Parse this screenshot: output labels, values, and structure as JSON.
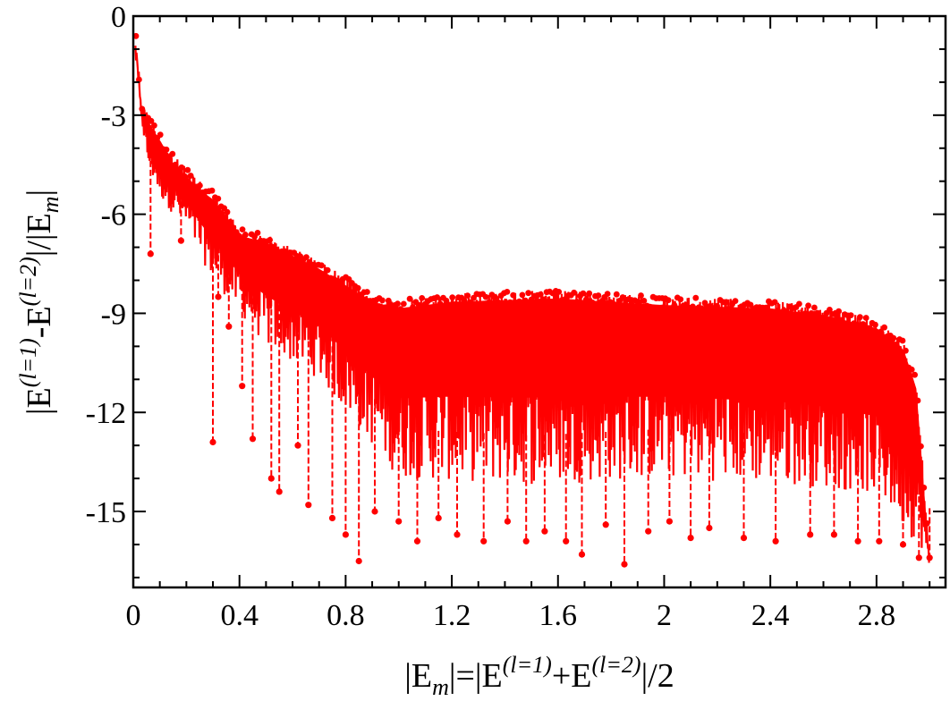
{
  "chart_data": {
    "type": "scatter",
    "title": "",
    "xlabel": {
      "prefix": "|E",
      "sub_m": "m",
      "mid": "|=|E",
      "sup1": "(l=1)",
      "plus": "+E",
      "sup2": "(l=2)",
      "suffix": "|/2"
    },
    "ylabel": {
      "prefix": "|E",
      "sup1": "(l=1)",
      "minus": "-E",
      "sup2": "(l=2)",
      "mid": "|/|E",
      "sub_m": "m",
      "suffix": "|"
    },
    "xlim": [
      0,
      3.06
    ],
    "ylim": [
      -17.3,
      0
    ],
    "xticks": [
      "0",
      "0.4",
      "0.8",
      "1.2",
      "1.6",
      "2",
      "2.4",
      "2.8"
    ],
    "xtick_values": [
      0,
      0.4,
      0.8,
      1.2,
      1.6,
      2.0,
      2.4,
      2.8
    ],
    "yticks": [
      "0",
      "-3",
      "-6",
      "-9",
      "-12",
      "-15"
    ],
    "ytick_values": [
      0,
      -3,
      -6,
      -9,
      -12,
      -15
    ],
    "grid": false,
    "legend": "none",
    "series_color": "#ff0000",
    "series": [
      {
        "upper_envelope": {
          "x": [
            0.01,
            0.03,
            0.06,
            0.1,
            0.15,
            0.2,
            0.25,
            0.3,
            0.35,
            0.4,
            0.5,
            0.6,
            0.7,
            0.8,
            0.9,
            1.0,
            1.2,
            1.6,
            2.0,
            2.4,
            2.6,
            2.8,
            2.9,
            2.95,
            3.0
          ],
          "y": [
            -0.5,
            -2.5,
            -3.0,
            -3.5,
            -4.2,
            -4.6,
            -5.0,
            -5.3,
            -5.8,
            -6.4,
            -6.6,
            -7.0,
            -7.4,
            -7.9,
            -8.4,
            -8.6,
            -8.4,
            -8.3,
            -8.5,
            -8.6,
            -8.8,
            -9.2,
            -9.8,
            -11.0,
            -16.3
          ]
        },
        "lower_envelope": {
          "x": [
            0.01,
            0.05,
            0.1,
            0.2,
            0.3,
            0.4,
            0.5,
            0.6,
            0.7,
            0.8,
            0.9,
            1.0,
            1.5,
            2.0,
            2.5,
            2.8,
            2.9,
            3.0
          ],
          "y": [
            -1.5,
            -4.5,
            -5.5,
            -6.5,
            -8.0,
            -9.0,
            -10.0,
            -10.5,
            -11.0,
            -12.0,
            -13.0,
            -14.0,
            -14.2,
            -14.0,
            -14.2,
            -14.5,
            -15.5,
            -16.4
          ]
        },
        "deep_dips": [
          {
            "x": 0.065,
            "y": -7.2
          },
          {
            "x": 0.18,
            "y": -6.8
          },
          {
            "x": 0.3,
            "y": -12.9
          },
          {
            "x": 0.32,
            "y": -8.5
          },
          {
            "x": 0.36,
            "y": -9.4
          },
          {
            "x": 0.41,
            "y": -11.2
          },
          {
            "x": 0.45,
            "y": -12.8
          },
          {
            "x": 0.52,
            "y": -14.0
          },
          {
            "x": 0.55,
            "y": -14.4
          },
          {
            "x": 0.62,
            "y": -13.0
          },
          {
            "x": 0.66,
            "y": -14.8
          },
          {
            "x": 0.75,
            "y": -15.2
          },
          {
            "x": 0.8,
            "y": -15.7
          },
          {
            "x": 0.85,
            "y": -16.5
          },
          {
            "x": 0.91,
            "y": -15.0
          },
          {
            "x": 1.0,
            "y": -15.3
          },
          {
            "x": 1.07,
            "y": -15.9
          },
          {
            "x": 1.15,
            "y": -15.2
          },
          {
            "x": 1.22,
            "y": -15.7
          },
          {
            "x": 1.32,
            "y": -15.9
          },
          {
            "x": 1.41,
            "y": -15.3
          },
          {
            "x": 1.48,
            "y": -15.9
          },
          {
            "x": 1.55,
            "y": -15.6
          },
          {
            "x": 1.63,
            "y": -15.9
          },
          {
            "x": 1.69,
            "y": -16.3
          },
          {
            "x": 1.78,
            "y": -15.4
          },
          {
            "x": 1.85,
            "y": -16.6
          },
          {
            "x": 1.94,
            "y": -15.6
          },
          {
            "x": 2.02,
            "y": -15.3
          },
          {
            "x": 2.1,
            "y": -15.8
          },
          {
            "x": 2.17,
            "y": -15.5
          },
          {
            "x": 2.3,
            "y": -15.8
          },
          {
            "x": 2.42,
            "y": -15.9
          },
          {
            "x": 2.55,
            "y": -15.7
          },
          {
            "x": 2.64,
            "y": -15.7
          },
          {
            "x": 2.73,
            "y": -15.9
          },
          {
            "x": 2.81,
            "y": -15.9
          },
          {
            "x": 2.9,
            "y": -16.0
          },
          {
            "x": 2.96,
            "y": -16.4
          },
          {
            "x": 3.0,
            "y": -16.4
          }
        ]
      }
    ]
  }
}
